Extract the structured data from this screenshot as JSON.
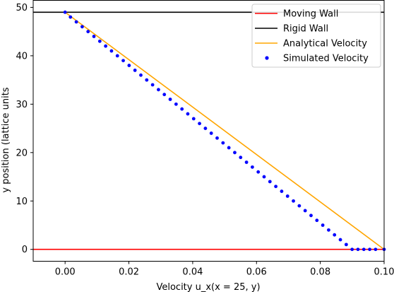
{
  "chart_data": {
    "type": "line",
    "xlabel": "Velocity u_x(x = 25, y)",
    "ylabel": "y position (lattice units",
    "xlim": [
      -0.01,
      0.1
    ],
    "ylim": [
      -2.45,
      51.45
    ],
    "x_ticks": [
      "0.00",
      "0.02",
      "0.04",
      "0.06",
      "0.08",
      "0.10"
    ],
    "x_tick_values": [
      0.0,
      0.02,
      0.04,
      0.06,
      0.08,
      0.1
    ],
    "y_ticks": [
      "0",
      "10",
      "20",
      "30",
      "40",
      "50"
    ],
    "y_tick_values": [
      0,
      10,
      20,
      30,
      40,
      50
    ],
    "legend_position": "top-right",
    "series": [
      {
        "name": "Moving Wall",
        "kind": "hline",
        "color": "#ff0000",
        "y": 0
      },
      {
        "name": "Rigid Wall",
        "kind": "hline",
        "color": "#000000",
        "y": 49
      },
      {
        "name": "Analytical Velocity",
        "kind": "line",
        "color": "#ffa500",
        "x": [
          0.0,
          0.1
        ],
        "y": [
          49,
          0
        ]
      },
      {
        "name": "Simulated Velocity",
        "kind": "scatter",
        "color": "#0000ff",
        "x": [
          0.0,
          0.00168,
          0.00352,
          0.00536,
          0.0072,
          0.00904,
          0.01088,
          0.01271,
          0.01455,
          0.01639,
          0.01823,
          0.02007,
          0.02191,
          0.02375,
          0.02559,
          0.02743,
          0.02927,
          0.03111,
          0.03295,
          0.03479,
          0.03663,
          0.03846,
          0.0403,
          0.04214,
          0.04398,
          0.04582,
          0.04766,
          0.0495,
          0.05134,
          0.05318,
          0.05502,
          0.05686,
          0.0587,
          0.06054,
          0.06238,
          0.06421,
          0.06605,
          0.06789,
          0.06973,
          0.07157,
          0.07341,
          0.07525,
          0.07709,
          0.07893,
          0.08077,
          0.08261,
          0.08445,
          0.08629,
          0.08813,
          0.08997,
          0.0918,
          0.09364,
          0.09548,
          0.09732,
          0.1
        ],
        "y": [
          49,
          48,
          47,
          46,
          45,
          44,
          43,
          42,
          41,
          40,
          39,
          38,
          37,
          36,
          35,
          34,
          33,
          32,
          31,
          30,
          29,
          28,
          27,
          26,
          25,
          24,
          23,
          22,
          21,
          20,
          19,
          18,
          17,
          16,
          15,
          14,
          13,
          12,
          11,
          10,
          9,
          8,
          7,
          6,
          5,
          4,
          3,
          2,
          1,
          0,
          0,
          0,
          0,
          0,
          0
        ]
      }
    ]
  }
}
